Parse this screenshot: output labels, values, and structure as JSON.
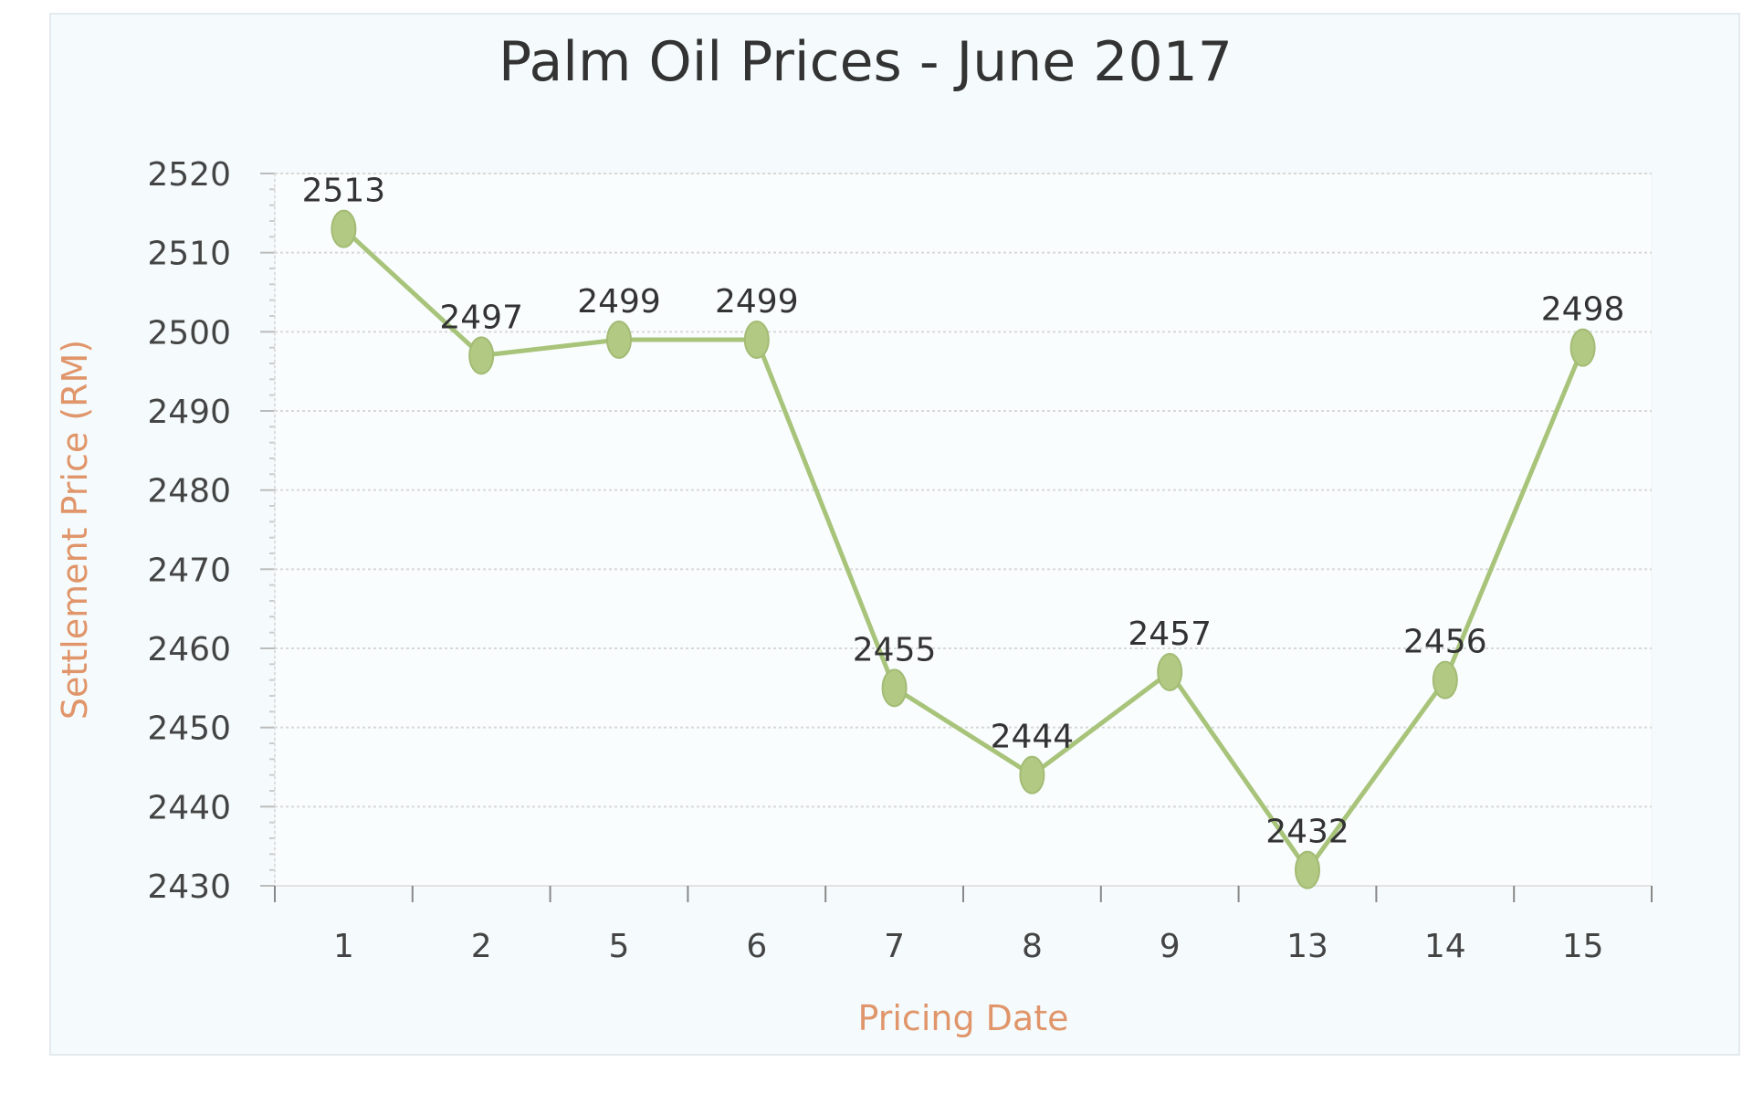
{
  "chart_data": {
    "type": "line",
    "title": "Palm Oil Prices - June 2017",
    "xlabel": "Pricing Date",
    "ylabel": "Settlement Price (RM)",
    "categories": [
      "1",
      "2",
      "5",
      "6",
      "7",
      "8",
      "9",
      "13",
      "14",
      "15"
    ],
    "values": [
      2513,
      2497,
      2499,
      2499,
      2455,
      2444,
      2457,
      2432,
      2456,
      2498
    ],
    "data_labels": [
      "2513",
      "2497",
      "2499",
      "2499",
      "2455",
      "2444",
      "2457",
      "2432",
      "2456",
      "2498"
    ],
    "ylim": [
      2430,
      2520
    ],
    "yticks": [
      "2430",
      "2440",
      "2450",
      "2460",
      "2470",
      "2480",
      "2490",
      "2500",
      "2510",
      "2520"
    ],
    "grid": true,
    "legend": "none",
    "colors": {
      "line": "#a8c47a",
      "marker": "#b2c983",
      "axis_title": "#e0956a",
      "background": "#f5fbfd"
    }
  }
}
